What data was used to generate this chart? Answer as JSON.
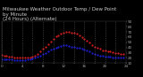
{
  "title_line1": "Milwaukee Weather Outdoor Temp / Dew Point",
  "title_line2": "by Minute",
  "title_line3": "(24 Hours) (Alternate)",
  "bg_color": "#000000",
  "plot_bg": "#000000",
  "grid_color": "#666666",
  "temp_color": "#ff2222",
  "dew_color": "#2222ff",
  "ylim": [
    10,
    90
  ],
  "yticks": [
    10,
    20,
    30,
    40,
    50,
    60,
    70,
    80,
    90
  ],
  "tick_color": "#aaaaaa",
  "temp_data_x": [
    0,
    0.5,
    1,
    1.5,
    2,
    2.5,
    3,
    3.5,
    4,
    4.5,
    5,
    5.5,
    6,
    6.5,
    7,
    7.5,
    8,
    8.5,
    9,
    9.5,
    10,
    10.5,
    11,
    11.5,
    12,
    12.5,
    13,
    13.5,
    14,
    14.5,
    15,
    15.5,
    16,
    16.5,
    17,
    17.5,
    18,
    18.5,
    19,
    19.5,
    20,
    20.5,
    21,
    21.5,
    22,
    22.5,
    23,
    23.5
  ],
  "temp_data_y": [
    26,
    25,
    24,
    23,
    22,
    21,
    21,
    20,
    20,
    20,
    20,
    21,
    23,
    25,
    28,
    32,
    37,
    42,
    47,
    52,
    57,
    61,
    64,
    67,
    69,
    70,
    70,
    69,
    68,
    66,
    63,
    60,
    57,
    53,
    49,
    45,
    42,
    39,
    37,
    35,
    34,
    33,
    32,
    31,
    30,
    29,
    28,
    28
  ],
  "dew_data_x": [
    0,
    0.5,
    1,
    1.5,
    2,
    2.5,
    3,
    3.5,
    4,
    4.5,
    5,
    5.5,
    6,
    6.5,
    7,
    7.5,
    8,
    8.5,
    9,
    9.5,
    10,
    10.5,
    11,
    11.5,
    12,
    12.5,
    13,
    13.5,
    14,
    14.5,
    15,
    15.5,
    16,
    16.5,
    17,
    17.5,
    18,
    18.5,
    19,
    19.5,
    20,
    20.5,
    21,
    21.5,
    22,
    22.5,
    23,
    23.5
  ],
  "dew_data_y": [
    18,
    18,
    17,
    17,
    17,
    16,
    16,
    16,
    16,
    16,
    17,
    18,
    19,
    20,
    22,
    24,
    27,
    30,
    33,
    36,
    38,
    40,
    42,
    43,
    44,
    44,
    43,
    42,
    41,
    40,
    39,
    38,
    36,
    34,
    32,
    30,
    28,
    26,
    25,
    24,
    23,
    22,
    22,
    21,
    21,
    20,
    20,
    20
  ],
  "xlim": [
    0,
    24
  ],
  "xticks": [
    0,
    2,
    4,
    6,
    8,
    10,
    12,
    14,
    16,
    18,
    20,
    22,
    24
  ],
  "title_fontsize": 4.0,
  "tick_fontsize": 3.0
}
